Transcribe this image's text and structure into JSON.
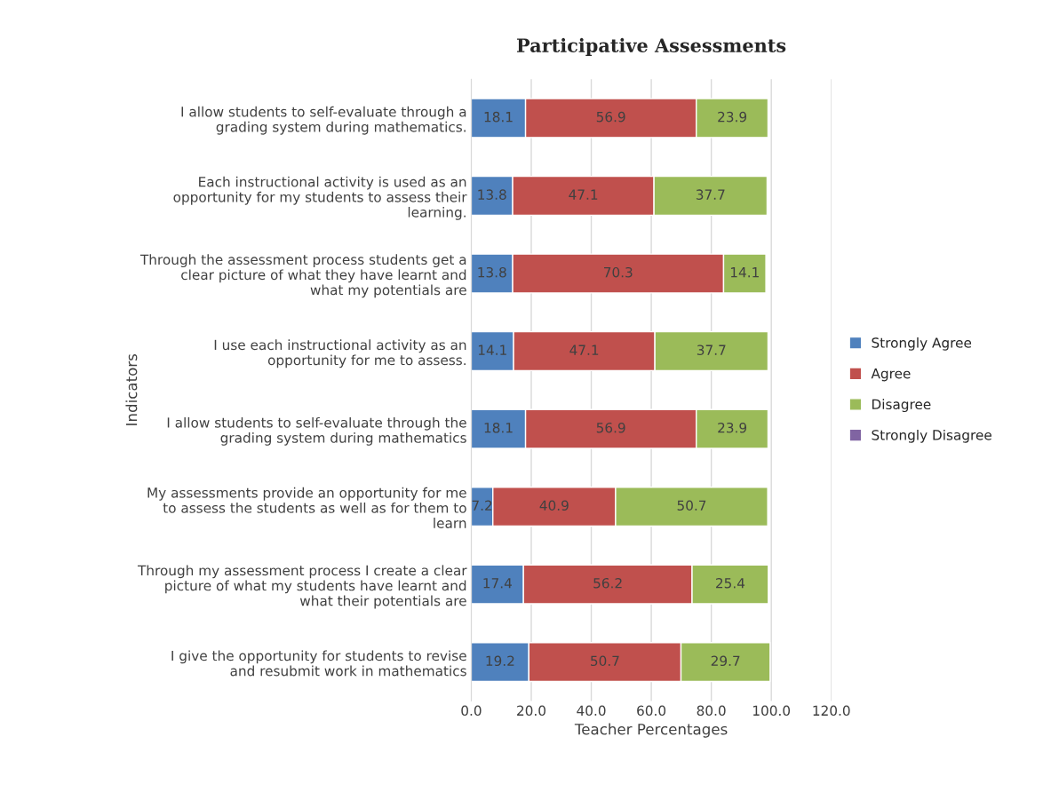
{
  "chart_data": {
    "type": "bar",
    "orientation": "horizontal",
    "stacked": true,
    "title": "Participative Assessments",
    "xlabel": "Teacher Percentages",
    "ylabel": "Indicators",
    "categories": [
      "I allow students to self-evaluate through a grading system during mathematics.",
      "Each instructional activity is used as an opportunity for my students to assess their learning.",
      "Through the assessment process students get a clear picture of what they have learnt and what my potentials are",
      "I use each instructional activity as an opportunity for me to assess.",
      "I allow students to self-evaluate through the grading system during mathematics",
      "My assessments provide an opportunity for me to assess the students as well as for them to learn",
      "Through my assessment process I create a clear picture of what my students have learnt and what their potentials are",
      "I give the opportunity for students to revise and resubmit work in mathematics"
    ],
    "series": [
      {
        "name": "Strongly Agree",
        "color": "#4f81bd",
        "values": [
          18.1,
          13.8,
          13.8,
          14.1,
          18.1,
          7.2,
          17.4,
          19.2
        ]
      },
      {
        "name": "Agree",
        "color": "#c0504d",
        "values": [
          56.9,
          47.1,
          70.3,
          47.1,
          56.9,
          40.9,
          56.2,
          50.7
        ]
      },
      {
        "name": "Disagree",
        "color": "#9bbb59",
        "values": [
          23.9,
          37.7,
          14.1,
          37.7,
          23.9,
          50.7,
          25.4,
          29.7
        ]
      },
      {
        "name": "Strongly Disagree",
        "color": "#8064a2",
        "values": [
          null,
          null,
          null,
          null,
          null,
          null,
          null,
          null
        ]
      }
    ],
    "xlim": [
      0,
      120
    ],
    "xticks": [
      {
        "value": 0,
        "label": "0.0"
      },
      {
        "value": 20,
        "label": "20.0"
      },
      {
        "value": 40,
        "label": "40.0"
      },
      {
        "value": 60,
        "label": "60.0"
      },
      {
        "value": 80,
        "label": "80.0"
      },
      {
        "value": 100,
        "label": "100.0"
      },
      {
        "value": 120,
        "label": "120.0"
      }
    ],
    "grid": "x",
    "legend": "right",
    "data_labels": true
  }
}
